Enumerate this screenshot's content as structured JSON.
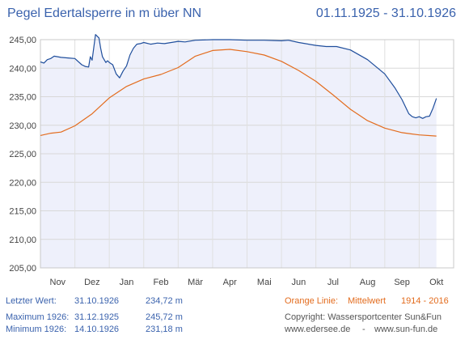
{
  "header": {
    "title": "Pegel Edertalsperre in m über NN",
    "period": "01.11.1925 - 31.10.1926"
  },
  "chart_data": {
    "type": "line",
    "x_unit": "month",
    "categories": [
      "Nov",
      "Dez",
      "Jan",
      "Feb",
      "Mär",
      "Apr",
      "Mai",
      "Jun",
      "Jul",
      "Aug",
      "Sep",
      "Okt"
    ],
    "ylim": [
      205,
      245
    ],
    "yticks": [
      "205,00",
      "210,00",
      "215,00",
      "220,00",
      "225,00",
      "230,00",
      "235,00",
      "240,00",
      "245,00"
    ],
    "grid": true,
    "colors": {
      "pegel": "#1f4e9c",
      "mittel": "#e36c1e",
      "fill": "#eef0fb"
    },
    "series": [
      {
        "x": [
          0,
          0.1,
          0.2,
          0.3,
          0.4,
          0.5,
          0.6,
          0.8,
          1.0,
          1.2,
          1.3,
          1.4,
          1.45,
          1.5,
          1.6,
          1.7,
          1.75,
          1.8,
          1.85,
          1.9,
          1.95,
          2.0,
          2.1,
          2.2,
          2.3,
          2.4,
          2.5,
          2.6,
          2.7,
          2.8,
          2.9,
          3.0,
          3.2,
          3.4,
          3.6,
          3.8,
          4.0,
          4.2,
          4.5,
          5.0,
          5.5,
          6.0,
          6.5,
          7.0,
          7.2,
          7.5,
          8.0,
          8.3,
          8.6,
          9.0,
          9.5,
          10.0,
          10.3,
          10.5,
          10.7,
          10.8,
          10.9,
          11.0,
          11.1,
          11.2,
          11.3,
          11.4,
          11.5
        ],
        "values": [
          241.1,
          240.9,
          241.5,
          241.7,
          242.1,
          242.0,
          241.9,
          241.8,
          241.7,
          240.6,
          240.3,
          240.2,
          242.0,
          241.4,
          245.9,
          245.3,
          243.5,
          242.0,
          241.5,
          241.0,
          241.3,
          241.0,
          240.6,
          239.0,
          238.3,
          239.5,
          240.4,
          242.3,
          243.5,
          244.2,
          244.3,
          244.5,
          244.2,
          244.4,
          244.3,
          244.5,
          244.7,
          244.6,
          244.9,
          245.0,
          245.0,
          244.9,
          244.9,
          244.8,
          244.9,
          244.5,
          244.0,
          243.8,
          243.8,
          243.2,
          241.5,
          239.0,
          236.5,
          234.5,
          232.0,
          231.5,
          231.3,
          231.5,
          231.2,
          231.5,
          231.6,
          233.0,
          234.7
        ]
      },
      {
        "x": [
          0,
          0.3,
          0.6,
          1.0,
          1.5,
          2.0,
          2.5,
          3.0,
          3.5,
          4.0,
          4.5,
          5.0,
          5.5,
          6.0,
          6.5,
          7.0,
          7.5,
          8.0,
          8.5,
          9.0,
          9.5,
          10.0,
          10.5,
          11.0,
          11.5
        ],
        "values": [
          228.2,
          228.6,
          228.8,
          229.9,
          232.0,
          234.8,
          236.8,
          238.1,
          238.9,
          240.1,
          242.1,
          243.1,
          243.3,
          242.9,
          242.3,
          241.2,
          239.6,
          237.7,
          235.3,
          232.8,
          230.8,
          229.5,
          228.7,
          228.3,
          228.1
        ]
      }
    ]
  },
  "info": {
    "last_label": "Letzter Wert:",
    "last_date": "31.10.1926",
    "last_value": "234,72 m",
    "max_label": "Maximum 1926:",
    "max_date": "31.12.1925",
    "max_value": "245,72 m",
    "min_label": "Minimum 1926:",
    "min_date": "14.10.1926",
    "min_value": "231,18 m"
  },
  "legend": {
    "orange_label": "Orange Linie:",
    "orange_text": "Mittelwert",
    "orange_years": "1914 - 2016"
  },
  "footer": {
    "copyright": "Copyright: Wassersportcenter Sun&Fun",
    "site1": "www.edersee.de",
    "separator": "-",
    "site2": "www.sun-fun.de"
  }
}
